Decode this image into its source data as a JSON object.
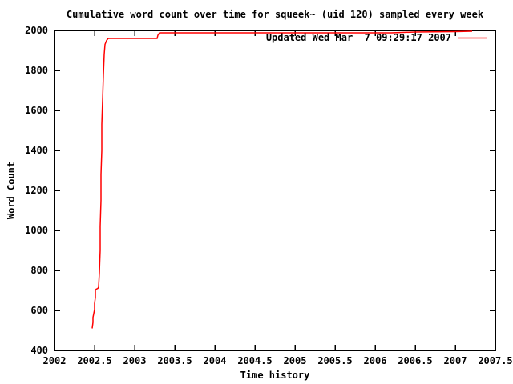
{
  "title": "Cumulative word count over time for squeek~ (uid 120) sampled every week",
  "legend": {
    "label": "Updated Wed Mar  7 09:29:17 2007"
  },
  "colors": {
    "line": "#ff0000",
    "text": "#000000",
    "background": "#ffffff"
  },
  "chart_data": {
    "type": "line",
    "title": "Cumulative word count over time for squeek~ (uid 120) sampled every week",
    "xlabel": "Time history",
    "ylabel": "Word Count",
    "xlim": [
      2002,
      2007.5
    ],
    "ylim": [
      400,
      2000
    ],
    "x_tick_labels": [
      "2002",
      "2002.5",
      "2003",
      "2003.5",
      "2004",
      "2004.5",
      "2005",
      "2005.5",
      "2006",
      "2006.5",
      "2007",
      "2007.5"
    ],
    "x_tick_values": [
      2002,
      2002.5,
      2003,
      2003.5,
      2004,
      2004.5,
      2005,
      2005.5,
      2006,
      2006.5,
      2007,
      2007.5
    ],
    "y_tick_values": [
      400,
      600,
      800,
      1000,
      1200,
      1400,
      1600,
      1800,
      2000
    ],
    "grid": false,
    "legend_position": "top-right-inside",
    "series": [
      {
        "name": "Updated Wed Mar  7 09:29:17 2007",
        "color": "#ff0000",
        "points": [
          [
            2002.47,
            510
          ],
          [
            2002.48,
            540
          ],
          [
            2002.48,
            565
          ],
          [
            2002.49,
            585
          ],
          [
            2002.5,
            605
          ],
          [
            2002.5,
            635
          ],
          [
            2002.51,
            665
          ],
          [
            2002.51,
            700
          ],
          [
            2002.52,
            706
          ],
          [
            2002.54,
            710
          ],
          [
            2002.55,
            716
          ],
          [
            2002.56,
            790
          ],
          [
            2002.57,
            900
          ],
          [
            2002.57,
            1020
          ],
          [
            2002.58,
            1150
          ],
          [
            2002.58,
            1280
          ],
          [
            2002.59,
            1400
          ],
          [
            2002.59,
            1530
          ],
          [
            2002.6,
            1650
          ],
          [
            2002.61,
            1780
          ],
          [
            2002.62,
            1880
          ],
          [
            2002.63,
            1930
          ],
          [
            2002.65,
            1950
          ],
          [
            2002.67,
            1960
          ],
          [
            2003.28,
            1960
          ],
          [
            2003.29,
            1976
          ],
          [
            2003.31,
            1988
          ],
          [
            2004.5,
            1988
          ],
          [
            2006.2,
            1988
          ],
          [
            2006.5,
            1992
          ],
          [
            2007.0,
            1994
          ],
          [
            2007.21,
            1996
          ]
        ]
      }
    ]
  }
}
